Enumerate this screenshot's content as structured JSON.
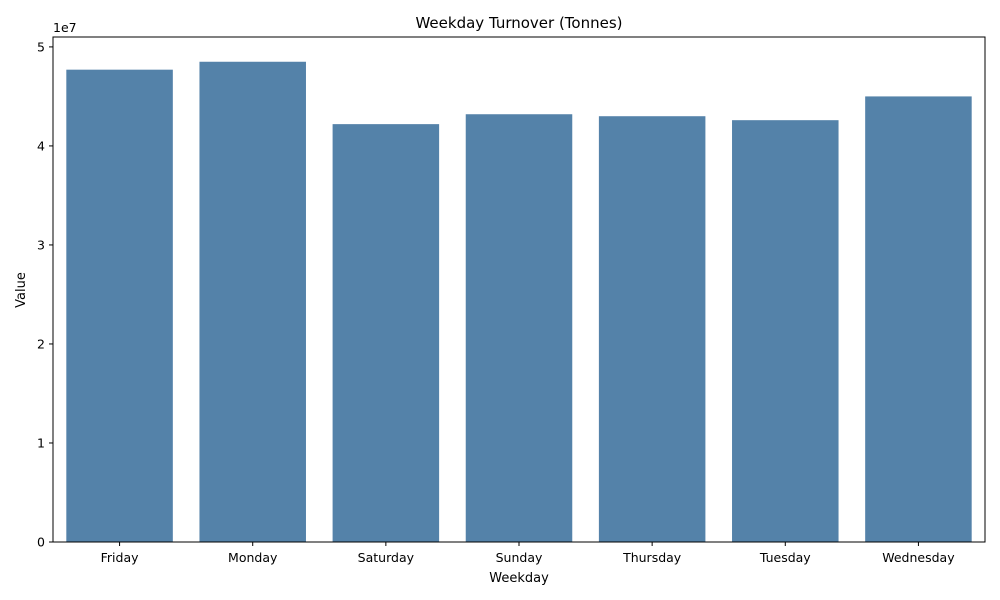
{
  "chart_data": {
    "type": "bar",
    "title": "Weekday Turnover (Tonnes)",
    "xlabel": "Weekday",
    "ylabel": "Value",
    "categories": [
      "Friday",
      "Monday",
      "Saturday",
      "Sunday",
      "Thursday",
      "Tuesday",
      "Wednesday"
    ],
    "values": [
      47700000,
      48500000,
      42200000,
      43200000,
      43000000,
      42600000,
      45000000
    ],
    "ylim": [
      0,
      51000000
    ],
    "yticks": [
      0,
      1,
      2,
      3,
      4,
      5
    ],
    "y_offset_label": "1e7",
    "grid": false,
    "colors": {
      "bar": "#5482a9",
      "axis": "#000000",
      "background": "#ffffff"
    }
  }
}
